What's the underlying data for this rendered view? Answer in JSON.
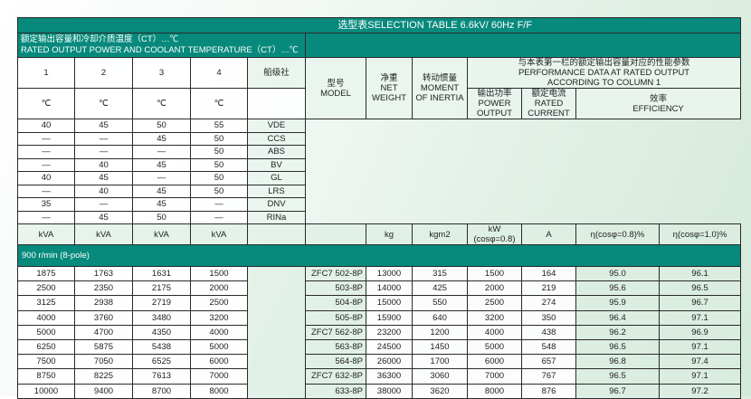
{
  "title": "选型表SELECTION TABLE 6.6kV/ 60Hz  F/F",
  "caption_cn": "额定输出容量和冷却介质温度（CT）…℃",
  "caption_en": "RATED OUTPUT POWER AND COOLANT TEMPERATURE（CT）…℃",
  "col_numbers": [
    "1",
    "2",
    "3",
    "4"
  ],
  "class_society_label": "船级社",
  "celsius": "℃",
  "class_rows": [
    [
      "40",
      "45",
      "50",
      "55",
      "VDE"
    ],
    [
      "—",
      "—",
      "45",
      "50",
      "CCS"
    ],
    [
      "—",
      "—",
      "—",
      "50",
      "ABS"
    ],
    [
      "—",
      "40",
      "45",
      "50",
      "BV"
    ],
    [
      "40",
      "45",
      "—",
      "50",
      "GL"
    ],
    [
      "—",
      "40",
      "45",
      "50",
      "LRS"
    ],
    [
      "35",
      "—",
      "45",
      "—",
      "DNV"
    ],
    [
      "—",
      "45",
      "50",
      "—",
      "RINa"
    ]
  ],
  "model_header": {
    "cn": "型号",
    "en": "MODEL"
  },
  "weight_header": {
    "cn": "净重",
    "en1": "NET",
    "en2": "WEIGHT"
  },
  "inertia_header": {
    "cn": "转动惯量",
    "en1": "MOMENT",
    "en2": "OF INERTIA"
  },
  "perf_header": {
    "cn": "与本表第一栏的额定输出容量对应的性能参数",
    "en1": "PERFORMANCE DATA AT RATED OUTPUT",
    "en2": "ACCORDING TO COLUMN 1"
  },
  "power_header": {
    "cn": "输出功率",
    "en1": "POWER",
    "en2": "OUTPUT"
  },
  "current_header": {
    "cn": "额定电流",
    "en1": "RATED",
    "en2": "CURRENT"
  },
  "eff_header": {
    "cn": "效率",
    "en": "EFFICIENCY"
  },
  "units": {
    "kva": "kVA",
    "kg": "kg",
    "inertia": "kgm2",
    "kw": "kW",
    "kw_note": "(cosφ=0.8)",
    "a": "A",
    "eff08": "η(cosφ=0.8)%",
    "eff10": "η(cosφ=1.0)%"
  },
  "section": "900 r/min (8-pole)",
  "rows": [
    [
      "1875",
      "1763",
      "1631",
      "1500",
      "ZFC7 502-8P",
      "13000",
      "315",
      "1500",
      "164",
      "95.0",
      "96.1"
    ],
    [
      "2500",
      "2350",
      "2175",
      "2000",
      "503-8P",
      "14000",
      "425",
      "2000",
      "219",
      "95.6",
      "96.5"
    ],
    [
      "3125",
      "2938",
      "2719",
      "2500",
      "504-8P",
      "15000",
      "550",
      "2500",
      "274",
      "95.9",
      "96.7"
    ],
    [
      "4000",
      "3760",
      "3480",
      "3200",
      "505-8P",
      "15900",
      "640",
      "3200",
      "350",
      "96.4",
      "97.1"
    ],
    [
      "5000",
      "4700",
      "4350",
      "4000",
      "ZFC7 562-8P",
      "23200",
      "1200",
      "4000",
      "438",
      "96.2",
      "96.9"
    ],
    [
      "6250",
      "5875",
      "5438",
      "5000",
      "563-8P",
      "24500",
      "1450",
      "5000",
      "548",
      "96.5",
      "97.1"
    ],
    [
      "7500",
      "7050",
      "6525",
      "6000",
      "564-8P",
      "26000",
      "1700",
      "6000",
      "657",
      "96.8",
      "97.4"
    ],
    [
      "8750",
      "8225",
      "7613",
      "7000",
      "ZFC7 632-8P",
      "36300",
      "3060",
      "7000",
      "767",
      "96.5",
      "97.1"
    ],
    [
      "10000",
      "9400",
      "8700",
      "8000",
      "633-8P",
      "38000",
      "3620",
      "8000",
      "876",
      "96.7",
      "97.2"
    ]
  ],
  "colors": {
    "header_teal": "#078a7c"
  }
}
